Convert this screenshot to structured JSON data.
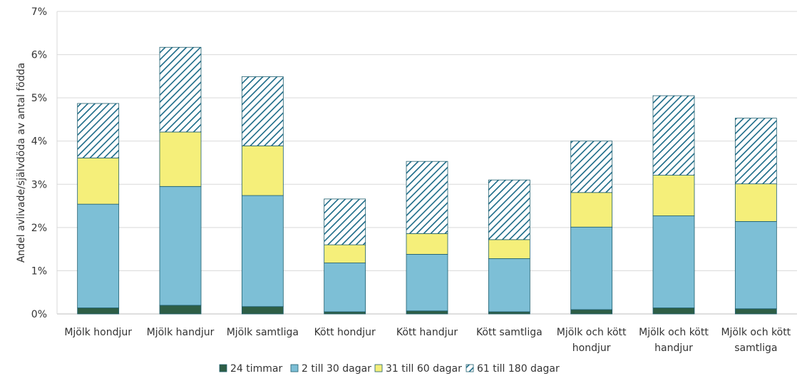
{
  "chart_data": {
    "type": "bar",
    "stacked": true,
    "ylabel": "Andel avlivade/självdöda av antal födda",
    "xlabel": "",
    "ylim": [
      0,
      7
    ],
    "yticks": [
      "0%",
      "1%",
      "2%",
      "3%",
      "4%",
      "5%",
      "6%",
      "7%"
    ],
    "grid": true,
    "legend_position": "bottom",
    "categories": [
      [
        "Mjölk hondjur"
      ],
      [
        "Mjölk handjur"
      ],
      [
        "Mjölk samtliga"
      ],
      [
        "Kött hondjur"
      ],
      [
        "Kött handjur"
      ],
      [
        "Kött samtliga"
      ],
      [
        "Mjölk och kött",
        "hondjur"
      ],
      [
        "Mjölk och kött",
        "handjur"
      ],
      [
        "Mjölk och kött",
        "samtliga"
      ]
    ],
    "series": [
      {
        "name": "24 timmar",
        "color": "#2e5e45",
        "pattern": "solid",
        "values": [
          0.14,
          0.2,
          0.17,
          0.05,
          0.07,
          0.05,
          0.1,
          0.14,
          0.12
        ]
      },
      {
        "name": "2 till 30 dagar",
        "color": "#7dbfd6",
        "pattern": "solid",
        "values": [
          2.4,
          2.75,
          2.57,
          1.13,
          1.31,
          1.23,
          1.91,
          2.13,
          2.02
        ]
      },
      {
        "name": "31 till 60 dagar",
        "color": "#f5ef7a",
        "pattern": "solid",
        "values": [
          1.07,
          1.26,
          1.15,
          0.42,
          0.48,
          0.44,
          0.8,
          0.94,
          0.87
        ]
      },
      {
        "name": "61 till 180 dagar",
        "color": "#1a6a87",
        "pattern": "hatch",
        "values": [
          1.26,
          1.96,
          1.6,
          1.06,
          1.67,
          1.38,
          1.19,
          1.84,
          1.52
        ]
      }
    ]
  }
}
